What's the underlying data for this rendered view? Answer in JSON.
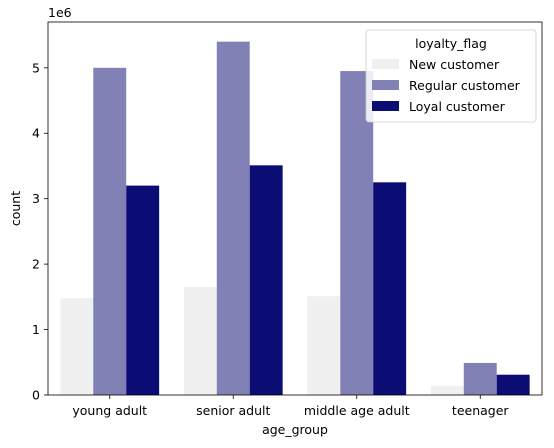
{
  "chart_data": {
    "type": "bar",
    "xlabel": "age_group",
    "ylabel": "count",
    "y_offset_label": "1e6",
    "y_multiplier": 1000000,
    "ylim": [
      0,
      5.7
    ],
    "yticks": [
      0,
      1,
      2,
      3,
      4,
      5
    ],
    "categories": [
      "young adult",
      "senior adult",
      "middle age adult",
      "teenager"
    ],
    "legend": {
      "title": "loyalty_flag",
      "position": "top-right"
    },
    "series": [
      {
        "name": "New customer",
        "color": "#f0f0f0",
        "values": [
          1.48,
          1.65,
          1.51,
          0.14
        ]
      },
      {
        "name": "Regular customer",
        "color": "#8181b5",
        "values": [
          5.0,
          5.4,
          4.95,
          0.49
        ]
      },
      {
        "name": "Loyal customer",
        "color": "#0c0c75",
        "values": [
          3.2,
          3.51,
          3.25,
          0.31
        ]
      }
    ],
    "grid": false
  }
}
